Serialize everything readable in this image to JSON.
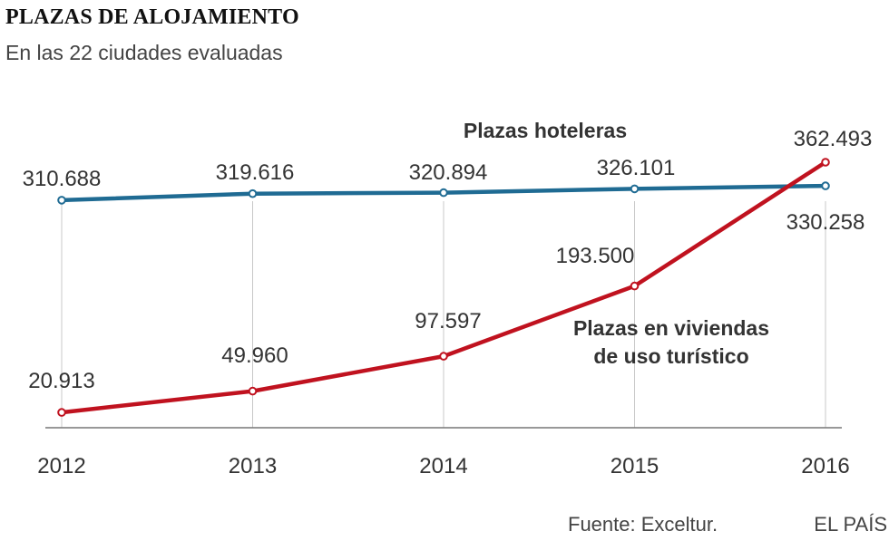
{
  "header": {
    "title": "PLAZAS DE ALOJAMIENTO",
    "subtitle": "En las 22 ciudades evaluadas"
  },
  "footer": {
    "source": "Fuente: Exceltur.",
    "brand": "EL PAÍS"
  },
  "colors": {
    "hoteleras": "#1f6b93",
    "viviendas": "#c0121f",
    "grid": "#c8c8c8",
    "axis": "#777777",
    "text": "#333333"
  },
  "chart_data": {
    "type": "line",
    "title": "PLAZAS DE ALOJAMIENTO",
    "subtitle": "En las 22 ciudades evaluadas",
    "categories": [
      "2012",
      "2013",
      "2014",
      "2015",
      "2016"
    ],
    "xlabel": "",
    "ylabel": "",
    "ylim": [
      0,
      370000
    ],
    "grid": "vertical",
    "series": [
      {
        "name": "Plazas hoteleras",
        "label_lines": [
          "Plazas hoteleras"
        ],
        "color": "#1f6b93",
        "values": [
          310688,
          319616,
          320894,
          326101,
          330258
        ],
        "value_labels": [
          "310.688",
          "319.616",
          "320.894",
          "326.101",
          "330.258"
        ]
      },
      {
        "name": "Plazas en viviendas de uso turístico",
        "label_lines": [
          "Plazas en viviendas",
          "de uso turístico"
        ],
        "color": "#c0121f",
        "values": [
          20913,
          49960,
          97597,
          193500,
          362493
        ],
        "value_labels": [
          "20.913",
          "49.960",
          "97.597",
          "193.500",
          "362.493"
        ]
      }
    ]
  }
}
